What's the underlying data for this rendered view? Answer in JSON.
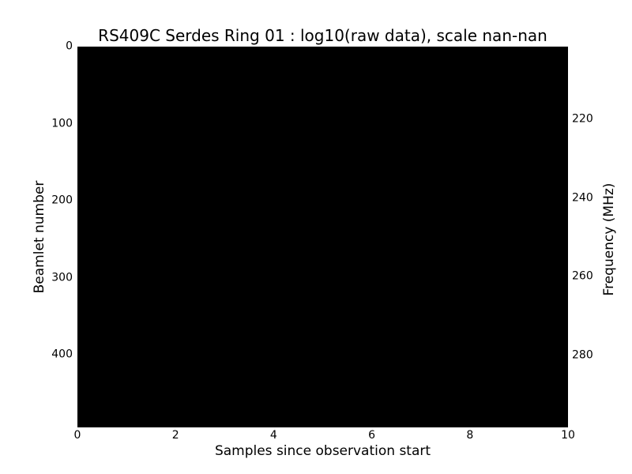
{
  "figure": {
    "background_color": "#ffffff",
    "text_color": "#000000",
    "plot_fill_color": "#000000"
  },
  "chart_data": {
    "type": "heatmap",
    "title": "RS409C Serdes Ring 01 : log10(raw data), scale nan-nan",
    "xlabel": "Samples since observation start",
    "ylabel_left": "Beamlet number",
    "ylabel_right": "Frequency (MHz)",
    "xticks": [
      0,
      2,
      4,
      6,
      8,
      10
    ],
    "yticks_left": [
      0,
      100,
      200,
      300,
      400
    ],
    "yticks_right": [
      220,
      240,
      260,
      280
    ],
    "xlim": [
      0,
      10
    ],
    "ylim_left_top_to_bottom": [
      0,
      494
    ],
    "ylim_right_top_to_bottom": [
      201.5,
      298.3
    ],
    "grid": false,
    "legend": "none",
    "values": "uniform solid black fill across entire plot area; color scale is nan-nan so no data variation is visible (all log10(raw data) pixels render as black)"
  }
}
